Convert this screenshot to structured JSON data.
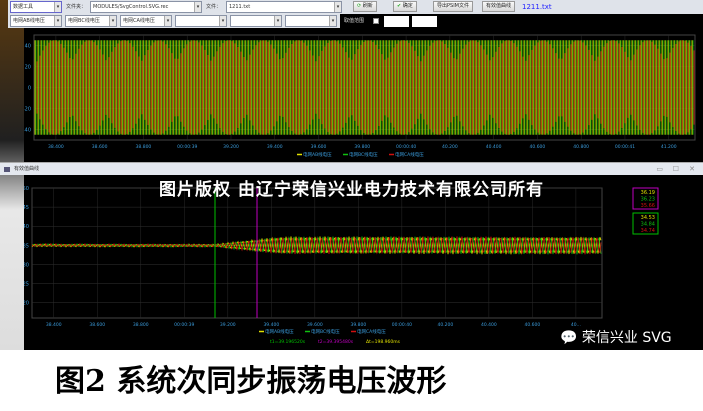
{
  "toolbar": {
    "tool_select": "数据工具",
    "folder_label": "文件夹：",
    "folder_value": "MODULES/SvgControl.SVG.rec",
    "file_label": "文件：",
    "file_value": "1211.txt",
    "refresh": "刷新",
    "confirm": "确定",
    "export": "导出PSIM文件",
    "rms_curve": "有效值曲线",
    "current_file": "1211.txt",
    "channels": [
      "电网AB线电压",
      "电网BC线电压",
      "电网CA线电压",
      "",
      "",
      ""
    ],
    "range_label": "取值范围",
    "range_min": "",
    "range_max": ""
  },
  "window2_title": "有效值曲线",
  "watermark": "图片版权 由辽宁荣信兴业电力技术有限公司所有",
  "brand": "荣信兴业 SVG",
  "caption": "图2  系统次同步振荡电压波形",
  "colors": {
    "ab": "#e0e000",
    "bc": "#10c010",
    "ca": "#d01010",
    "cursor1": "#00c000",
    "cursor2": "#c000c0",
    "tick": "#3a9ad9"
  },
  "chart_data": [
    {
      "type": "line",
      "title": "",
      "ylim": [
        -50,
        50
      ],
      "yticks": [
        "40",
        "20",
        "0",
        "-20",
        "-40"
      ],
      "xticks": [
        "38.400",
        "38.600",
        "38.800",
        "00:00:39",
        "39.200",
        "39.400",
        "39.600",
        "39.800",
        "00:00:40",
        "40.200",
        "40.400",
        "40.600",
        "40.800",
        "00:00:41",
        "41.200"
      ],
      "series": [
        {
          "name": "电网AB线电压"
        },
        {
          "name": "电网BC线电压"
        },
        {
          "name": "电网CA线电压"
        }
      ],
      "amplitude": 45,
      "legend": "bottom"
    },
    {
      "type": "line",
      "title": "",
      "ylim": [
        16,
        50
      ],
      "yticks": [
        "50",
        "45",
        "40",
        "35",
        "30",
        "25",
        "20"
      ],
      "xticks": [
        "38.400",
        "38.600",
        "38.800",
        "00:00:39",
        "39.200",
        "39.400",
        "39.600",
        "39.800",
        "00:00:40",
        "40.200",
        "40.400",
        "40.600",
        "40..."
      ],
      "series": [
        {
          "name": "电网AB线电压"
        },
        {
          "name": "电网BC线电压"
        },
        {
          "name": "电网CA线电压"
        }
      ],
      "baseline": 35,
      "legend": "bottom",
      "cursor_values_1": [
        "36.19",
        "36.23",
        "35.66"
      ],
      "cursor_values_2": [
        "34.53",
        "34.84",
        "34.74"
      ],
      "cursor_readout": {
        "t1": "t1=39.196520s",
        "t2": "t2=39.395480s",
        "dt": "Δt=198.960ms"
      }
    }
  ]
}
